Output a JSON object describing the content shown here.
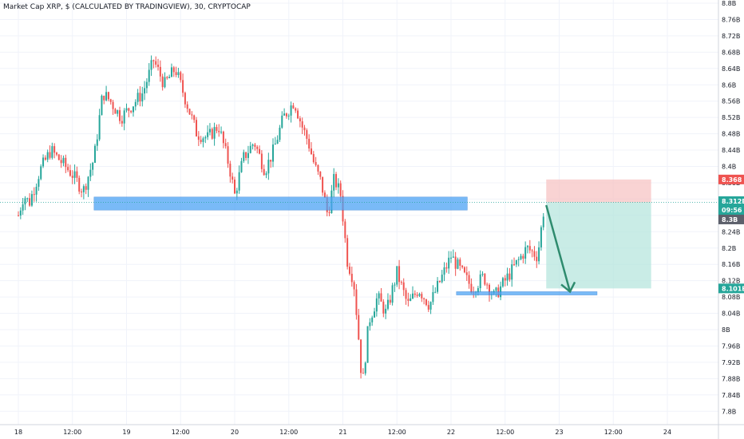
{
  "title": "Market Cap XRP, $ (CALCULATED BY TRADINGVIEW), 30, CRYPTOCAP",
  "colors": {
    "up": "#26a69a",
    "down": "#ef5350",
    "zone_blue": "#4da3f5",
    "stop_zone": "#f7c4c4",
    "target_zone": "#b7e6dd",
    "arrow": "#2e8b6e",
    "tag_red": "#ef5350",
    "tag_teal": "#26a69a",
    "tag_gray": "#5d606b",
    "grid": "#f0f3fa"
  },
  "price_axis": {
    "labels": [
      "8.8B",
      "8.76B",
      "8.72B",
      "8.68B",
      "8.64B",
      "8.6B",
      "8.56B",
      "8.52B",
      "8.48B",
      "8.44B",
      "8.4B",
      "8.36B",
      "8.32B",
      "8.28B",
      "8.24B",
      "8.2B",
      "8.16B",
      "8.12B",
      "8.08B",
      "8.04B",
      "8B",
      "7.96B",
      "7.92B",
      "7.88B",
      "7.84B",
      "7.8B"
    ],
    "tags": {
      "stop": "8.368",
      "entry": "8.312B",
      "countdown": "09:56",
      "current": "8.3B",
      "target": "8.101B"
    }
  },
  "time_axis": {
    "labels": [
      "18",
      "12:00",
      "19",
      "12:00",
      "20",
      "12:00",
      "21",
      "12:00",
      "22",
      "12:00",
      "23",
      "12:00",
      "24"
    ]
  },
  "chart_data": {
    "type": "candlestick",
    "title": "Market Cap XRP, $ (CALCULATED BY TRADINGVIEW), 30, CRYPTOCAP",
    "xlabel": "",
    "ylabel": "",
    "x_range": [
      "18",
      "24"
    ],
    "ylim": [
      7.78,
      8.8
    ],
    "y_unit": "B USD",
    "interval": "30",
    "grid": true,
    "series_close_path": [
      [
        0.0,
        8.28
      ],
      [
        0.05,
        8.33
      ],
      [
        0.1,
        8.31
      ],
      [
        0.2,
        8.39
      ],
      [
        0.3,
        8.44
      ],
      [
        0.4,
        8.41
      ],
      [
        0.5,
        8.38
      ],
      [
        0.6,
        8.34
      ],
      [
        0.7,
        8.42
      ],
      [
        0.78,
        8.58
      ],
      [
        0.85,
        8.56
      ],
      [
        0.95,
        8.52
      ],
      [
        1.05,
        8.55
      ],
      [
        1.15,
        8.58
      ],
      [
        1.25,
        8.66
      ],
      [
        1.35,
        8.6
      ],
      [
        1.45,
        8.64
      ],
      [
        1.55,
        8.56
      ],
      [
        1.65,
        8.48
      ],
      [
        1.75,
        8.47
      ],
      [
        1.85,
        8.5
      ],
      [
        1.95,
        8.4
      ],
      [
        2.0,
        8.33
      ],
      [
        2.08,
        8.42
      ],
      [
        2.18,
        8.46
      ],
      [
        2.28,
        8.39
      ],
      [
        2.36,
        8.44
      ],
      [
        2.45,
        8.52
      ],
      [
        2.55,
        8.56
      ],
      [
        2.62,
        8.5
      ],
      [
        2.68,
        8.46
      ],
      [
        2.74,
        8.4
      ],
      [
        2.8,
        8.36
      ],
      [
        2.86,
        8.28
      ],
      [
        2.92,
        8.37
      ],
      [
        2.98,
        8.33
      ],
      [
        3.04,
        8.17
      ],
      [
        3.1,
        8.12
      ],
      [
        3.14,
        8.0
      ],
      [
        3.18,
        7.86
      ],
      [
        3.24,
        8.02
      ],
      [
        3.32,
        8.08
      ],
      [
        3.4,
        8.04
      ],
      [
        3.5,
        8.14
      ],
      [
        3.6,
        8.06
      ],
      [
        3.7,
        8.1
      ],
      [
        3.8,
        8.06
      ],
      [
        3.9,
        8.12
      ],
      [
        4.0,
        8.18
      ],
      [
        4.1,
        8.14
      ],
      [
        4.2,
        8.1
      ],
      [
        4.3,
        8.13
      ],
      [
        4.4,
        8.08
      ],
      [
        4.5,
        8.12
      ],
      [
        4.6,
        8.16
      ],
      [
        4.7,
        8.2
      ],
      [
        4.8,
        8.18
      ],
      [
        4.86,
        8.3
      ]
    ],
    "annotations": [
      {
        "type": "zone",
        "label": "resistance zone",
        "x": [
          0.7,
          4.15
        ],
        "y": [
          8.293,
          8.325
        ]
      },
      {
        "type": "zone",
        "label": "support zone",
        "x": [
          4.05,
          5.35
        ],
        "y": [
          8.085,
          8.093
        ]
      },
      {
        "type": "short_position",
        "x": [
          4.88,
          5.85
        ],
        "entry": 8.312,
        "stop": 8.368,
        "target": 8.101
      },
      {
        "type": "arrow",
        "from": [
          4.88,
          8.305
        ],
        "to": [
          5.1,
          8.093
        ]
      }
    ]
  }
}
